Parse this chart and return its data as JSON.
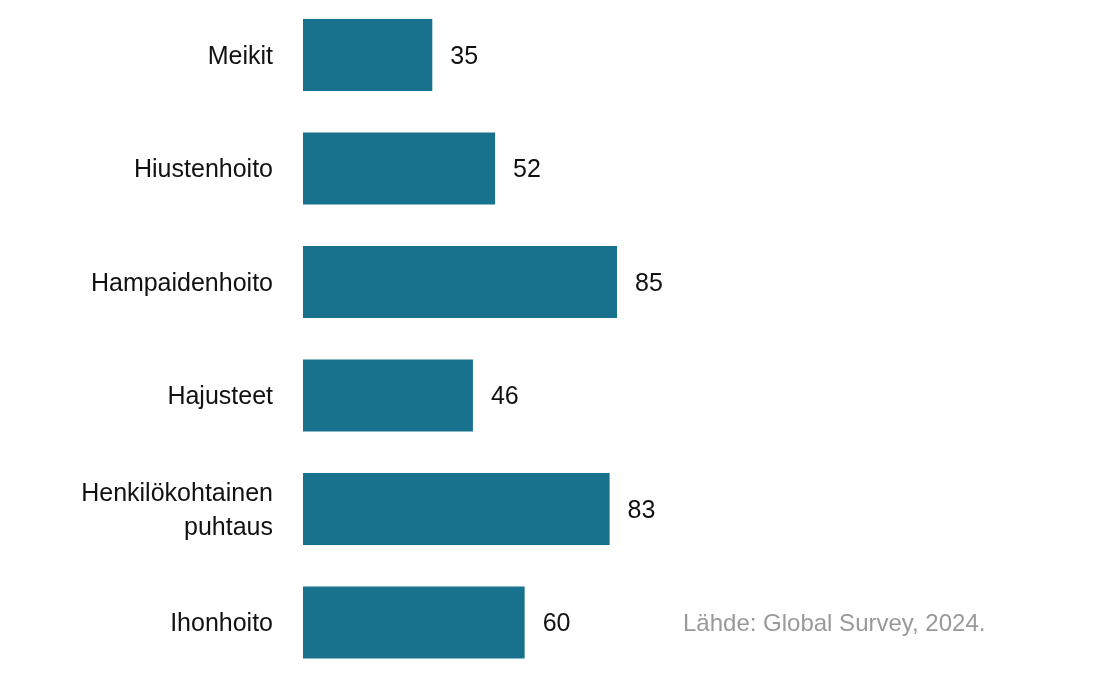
{
  "chart_data": {
    "type": "bar",
    "orientation": "horizontal",
    "data_labels": true,
    "color": "#18728d",
    "categories": [
      "Meikit",
      "Hiustenhoito",
      "Hampaidenhoito",
      "Hajusteet",
      "Henkilökohtainen puhtaus",
      "Ihonhoito"
    ],
    "values": [
      35,
      52,
      85,
      46,
      83,
      60
    ],
    "annotations": [
      "Lähde: Global Survey, 2024."
    ]
  }
}
